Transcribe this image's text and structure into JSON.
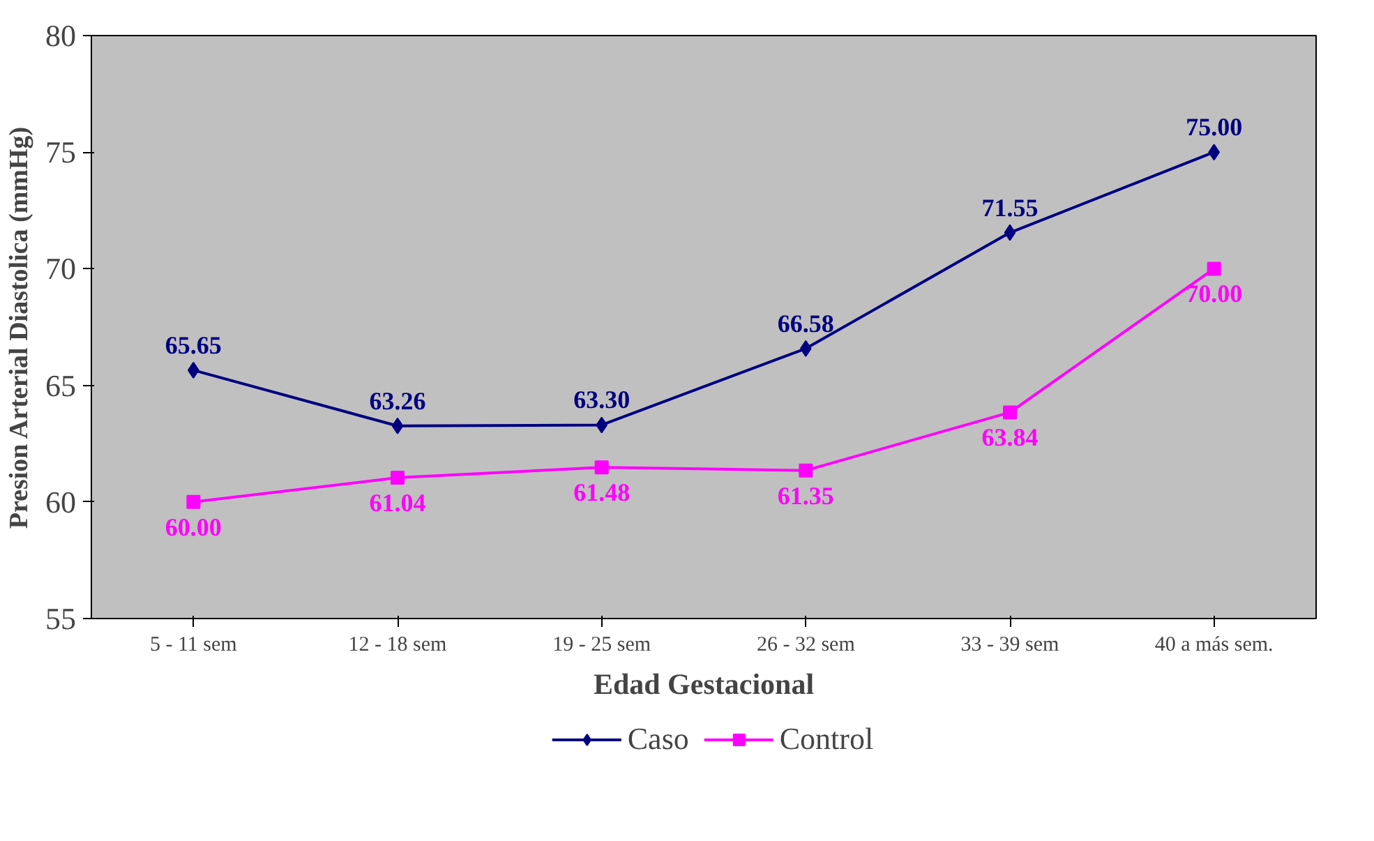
{
  "chart_data": {
    "type": "line",
    "xlabel": "Edad Gestacional",
    "ylabel": "Presion Arterial Diastolica (mmHg)",
    "categories": [
      "5 - 11 sem",
      "12 - 18 sem",
      "19 - 25 sem",
      "26 - 32 sem",
      "33 - 39 sem",
      "40 a más sem."
    ],
    "series": [
      {
        "name": "Caso",
        "color": "#000080",
        "marker": "diamond",
        "values": [
          65.65,
          63.26,
          63.3,
          66.58,
          71.55,
          75.0
        ],
        "value_labels": [
          "65.65",
          "63.26",
          "63.30",
          "66.58",
          "71.55",
          "75.00"
        ]
      },
      {
        "name": "Control",
        "color": "#ff00ff",
        "marker": "square",
        "values": [
          60.0,
          61.04,
          61.48,
          61.35,
          63.84,
          70.0
        ],
        "value_labels": [
          "60.00",
          "61.04",
          "61.48",
          "61.35",
          "63.84",
          "70.00"
        ]
      }
    ],
    "ylim": [
      55,
      80
    ],
    "yticks": [
      55,
      60,
      65,
      70,
      75,
      80
    ],
    "grid": false,
    "legend": "bottom",
    "line_style": "solid"
  }
}
